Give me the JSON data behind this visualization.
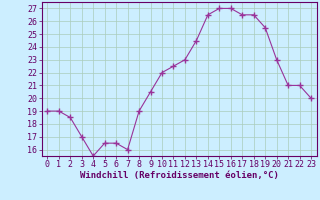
{
  "x": [
    0,
    1,
    2,
    3,
    4,
    5,
    6,
    7,
    8,
    9,
    10,
    11,
    12,
    13,
    14,
    15,
    16,
    17,
    18,
    19,
    20,
    21,
    22,
    23
  ],
  "y": [
    19.0,
    19.0,
    18.5,
    17.0,
    15.5,
    16.5,
    16.5,
    16.0,
    19.0,
    20.5,
    22.0,
    22.5,
    23.0,
    24.5,
    26.5,
    27.0,
    27.0,
    26.5,
    26.5,
    25.5,
    23.0,
    21.0,
    21.0,
    20.0
  ],
  "line_color": "#993399",
  "marker": "+",
  "marker_size": 4,
  "bg_color": "#cceeff",
  "grid_color": "#aaccbb",
  "xlabel": "Windchill (Refroidissement éolien,°C)",
  "ylabel_ticks": [
    16,
    17,
    18,
    19,
    20,
    21,
    22,
    23,
    24,
    25,
    26,
    27
  ],
  "xtick_labels": [
    "0",
    "1",
    "2",
    "3",
    "4",
    "5",
    "6",
    "7",
    "8",
    "9",
    "10",
    "11",
    "12",
    "13",
    "14",
    "15",
    "16",
    "17",
    "18",
    "19",
    "20",
    "21",
    "22",
    "23"
  ],
  "ylim": [
    15.5,
    27.5
  ],
  "xlim": [
    -0.5,
    23.5
  ],
  "xlabel_fontsize": 6.5,
  "tick_fontsize": 6.0,
  "tick_color": "#660066",
  "xlabel_color": "#660066",
  "spine_color": "#660066"
}
